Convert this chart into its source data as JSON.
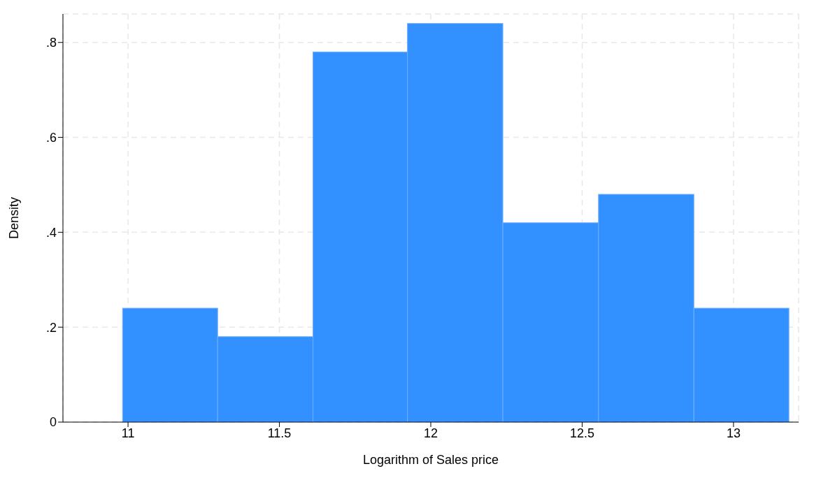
{
  "chart_data": {
    "type": "histogram",
    "xlabel": "Logarithm of Sales price",
    "ylabel": "Density",
    "bins": [
      10.982,
      11.296,
      11.611,
      11.923,
      12.238,
      12.554,
      12.869,
      13.183
    ],
    "values": [
      0.24,
      0.18,
      0.78,
      0.84,
      0.42,
      0.48,
      0.24
    ],
    "color": "#3390ff",
    "xlim": [
      10.785,
      13.215
    ],
    "xticks": [
      11,
      11.5,
      12,
      12.5,
      13
    ],
    "ylim": [
      0,
      0.86
    ],
    "yticks": [
      0,
      {
        "value": 0.2,
        "label": ".2"
      },
      {
        "value": 0.4,
        "label": ".4"
      },
      {
        "value": 0.6,
        "label": ".6"
      },
      {
        "value": 0.8,
        "label": ".8"
      }
    ],
    "grid": true
  }
}
